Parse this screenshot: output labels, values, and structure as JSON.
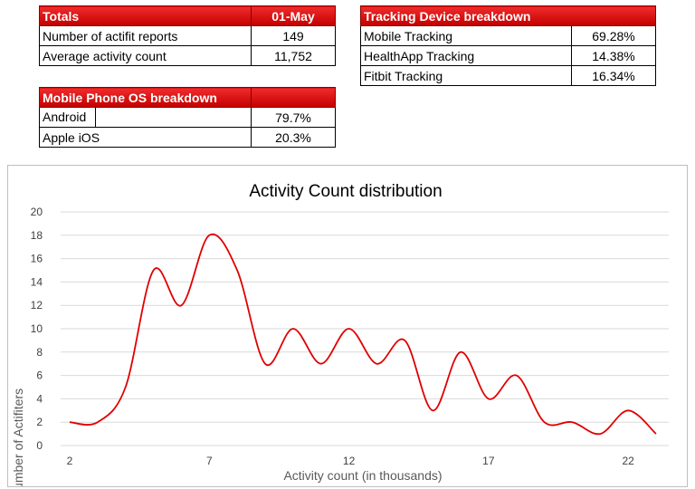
{
  "totals": {
    "header_label": "Totals",
    "header_date": "01-May",
    "rows": [
      {
        "label": "Number of actifit reports",
        "value": "149"
      },
      {
        "label": "Average activity count",
        "value": "11,752"
      }
    ]
  },
  "tracking": {
    "header_label": "Tracking Device breakdown",
    "rows": [
      {
        "label": "Mobile Tracking",
        "value": "69.28%"
      },
      {
        "label": "HealthApp Tracking",
        "value": "14.38%"
      },
      {
        "label": "Fitbit Tracking",
        "value": "16.34%"
      }
    ]
  },
  "os": {
    "header_label": "Mobile Phone OS breakdown",
    "rows": [
      {
        "label": "Android",
        "value": "79.7%"
      },
      {
        "label": "Apple iOS",
        "value": "20.3%"
      }
    ]
  },
  "colors": {
    "accent": "#e00000",
    "grid": "#d9d9d9"
  },
  "chart_data": {
    "type": "line",
    "title": "Activity Count distribution",
    "xlabel": "Activity count (in thousands)",
    "ylabel": "Number of Actifiters",
    "x": [
      2,
      3,
      4,
      5,
      6,
      7,
      8,
      9,
      10,
      11,
      12,
      13,
      14,
      15,
      16,
      17,
      18,
      19,
      20,
      21,
      22,
      23
    ],
    "values": [
      2,
      2,
      5,
      15,
      12,
      18,
      15,
      7,
      10,
      7,
      10,
      7,
      9,
      3,
      8,
      4,
      6,
      2,
      2,
      1,
      3,
      1
    ],
    "xticks": [
      2,
      7,
      12,
      17,
      22
    ],
    "yticks": [
      0,
      2,
      4,
      6,
      8,
      10,
      12,
      14,
      16,
      18,
      20
    ],
    "xlim": [
      2,
      23
    ],
    "ylim": [
      0,
      20
    ],
    "smooth": true
  }
}
